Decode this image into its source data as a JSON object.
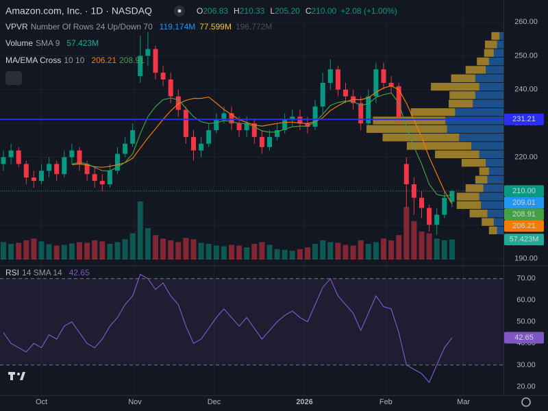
{
  "header": {
    "title": "Amazon.com, Inc. · 1D · NASDAQ",
    "quote": [
      {
        "label": "O",
        "value": "206.83"
      },
      {
        "label": "H",
        "value": "210.33"
      },
      {
        "label": "L",
        "value": "205.20"
      },
      {
        "label": "C",
        "value": "210.00"
      }
    ],
    "change": "+2.08 (+1.00%)"
  },
  "chart_data": {
    "type": "candlestick",
    "up_color": "#089981",
    "down_color": "#f23645",
    "open": [
      218,
      220,
      222,
      218,
      214,
      213,
      216,
      218,
      215,
      220,
      222,
      218,
      215,
      213,
      212,
      216,
      221,
      224,
      244,
      250,
      252,
      245,
      243,
      238,
      234,
      226,
      222,
      224,
      228,
      231,
      233,
      230,
      228,
      230,
      226,
      223,
      226,
      228,
      231,
      232,
      230,
      229,
      235,
      242,
      246,
      240,
      238,
      236,
      230,
      238,
      246,
      242,
      241,
      218,
      212,
      208,
      205,
      200,
      203,
      206.83
    ],
    "high": [
      222,
      224,
      223,
      219,
      216,
      218,
      220,
      219,
      222,
      224,
      223,
      219,
      217,
      215,
      218,
      223,
      226,
      230,
      256,
      257,
      253,
      247,
      245,
      240,
      235,
      228,
      226,
      230,
      233,
      235,
      235,
      232,
      232,
      231,
      228,
      228,
      230,
      233,
      234,
      234,
      232,
      237,
      245,
      249,
      247,
      242,
      240,
      238,
      240,
      248,
      248,
      244,
      242,
      220,
      214,
      210,
      206,
      205,
      210,
      210.33
    ],
    "low": [
      216,
      218,
      217,
      212,
      211,
      212,
      214,
      213,
      214,
      218,
      216,
      213,
      211,
      210,
      211,
      215,
      220,
      223,
      242,
      247,
      243,
      241,
      236,
      232,
      224,
      219,
      220,
      223,
      227,
      230,
      228,
      226,
      226,
      224,
      221,
      222,
      225,
      227,
      229,
      228,
      227,
      228,
      233,
      240,
      238,
      236,
      234,
      228,
      229,
      236,
      240,
      239,
      230,
      205,
      203,
      202,
      198,
      197,
      202,
      205.2
    ],
    "close": [
      220,
      222,
      218,
      214,
      213,
      216,
      218,
      215,
      220,
      222,
      218,
      215,
      213,
      212,
      216,
      221,
      224,
      228,
      250,
      252,
      245,
      243,
      238,
      234,
      226,
      222,
      224,
      228,
      231,
      233,
      230,
      228,
      230,
      226,
      223,
      226,
      228,
      231,
      232,
      230,
      229,
      235,
      242,
      246,
      240,
      238,
      236,
      230,
      238,
      246,
      242,
      241,
      232,
      212,
      208,
      205,
      200,
      203,
      208,
      210
    ],
    "close_label": "210.00",
    "ylim": [
      188.5,
      266.5
    ],
    "yticks": [
      {
        "value": 190,
        "label": "190.00"
      },
      {
        "value": 200,
        "label": "200.00"
      },
      {
        "value": 210,
        "label": "210.00"
      },
      {
        "value": 220,
        "label": "220.00"
      },
      {
        "value": 230,
        "label": "230.00"
      },
      {
        "value": 240,
        "label": "240.00"
      },
      {
        "value": 250,
        "label": "250.00"
      },
      {
        "value": 260,
        "label": "260.00"
      }
    ],
    "xticks": [
      {
        "value": 5,
        "label": "Oct"
      },
      {
        "value": 17.3,
        "label": "Nov"
      },
      {
        "value": 27.7,
        "label": "Dec"
      },
      {
        "value": 39.6,
        "label": "2026"
      },
      {
        "value": 50.3,
        "label": "Feb"
      },
      {
        "value": 60.5,
        "label": "Mar"
      }
    ],
    "grid": true,
    "price_line": {
      "value": 231.21,
      "label": "231.21",
      "color": "#2a2ef0"
    },
    "level": {
      "value": 209.01,
      "label": "209.01",
      "color": "#2196f3"
    },
    "vpvr": {
      "name": "VPVR",
      "params": "Number Of Rows 24 Up/Down 70",
      "up_total": "119.174M",
      "down_total": "77.599M",
      "total": "196.772M",
      "up_color": "#1f5b9e",
      "down_color": "#b08d2c",
      "up": [
        8,
        12,
        20,
        28,
        30,
        25,
        20,
        18,
        22,
        30,
        40,
        55,
        70,
        72,
        60,
        38,
        35,
        30,
        35,
        22,
        18,
        12,
        8,
        5
      ],
      "down": [
        10,
        15,
        22,
        30,
        28,
        22,
        15,
        12,
        30,
        55,
        80,
        95,
        100,
        90,
        55,
        30,
        32,
        60,
        30,
        25,
        15,
        12,
        15,
        10
      ]
    },
    "volume": {
      "name": "Volume",
      "params": "SMA 9",
      "value_label": "57.423M",
      "badge_color": "#22ab94",
      "values": [
        50,
        45,
        48,
        55,
        60,
        52,
        44,
        40,
        42,
        46,
        50,
        48,
        55,
        52,
        45,
        50,
        58,
        75,
        166,
        90,
        70,
        60,
        55,
        50,
        62,
        58,
        48,
        45,
        40,
        38,
        42,
        40,
        35,
        45,
        50,
        42,
        30,
        28,
        25,
        30,
        35,
        45,
        55,
        50,
        48,
        42,
        40,
        55,
        45,
        50,
        60,
        55,
        70,
        150,
        110,
        80,
        75,
        60,
        55,
        57.423
      ]
    },
    "cross": {
      "name": "MA/EMA Cross",
      "params": "10 10",
      "ma": {
        "color": "#f57c00",
        "last_label": "206.21",
        "values": [
          null,
          null,
          null,
          null,
          null,
          null,
          null,
          null,
          null,
          217.8,
          218,
          217.7,
          217.2,
          217,
          217.3,
          217.8,
          218.4,
          219.7,
          222.7,
          225.7,
          228.4,
          231.2,
          233.7,
          235.8,
          236.8,
          237.4,
          237.4,
          237.8,
          236,
          234.1,
          232.6,
          231.1,
          230.3,
          229.5,
          229.2,
          229.6,
          230,
          230.3,
          230.4,
          230.1,
          230,
          230.5,
          231.7,
          233.8,
          235.2,
          236.4,
          237.1,
          237,
          237.6,
          239.2,
          240.5,
          241.1,
          240,
          236,
          231,
          226,
          220,
          215,
          210,
          206.21
        ]
      },
      "ema": {
        "color": "#43a047",
        "last_label": "208.91",
        "values": [
          null,
          null,
          null,
          null,
          null,
          null,
          null,
          null,
          null,
          218,
          218.5,
          218,
          217,
          216,
          216,
          217,
          218.5,
          221,
          227,
          232,
          235,
          237,
          237.5,
          237,
          234.5,
          232,
          230.5,
          230,
          230.2,
          230.8,
          230.6,
          230,
          230,
          229,
          227.8,
          227.4,
          227.5,
          228.3,
          229,
          229.2,
          229.2,
          230.4,
          232.7,
          235.3,
          236.2,
          236.6,
          236.5,
          235.3,
          235.8,
          237.7,
          238.5,
          239,
          236,
          229,
          223,
          218,
          212,
          209,
          208.5,
          208.91
        ]
      }
    },
    "rsi": {
      "name": "RSI",
      "params": "14 SMA 14",
      "last_label": "42.65",
      "color": "#7e57c2",
      "values": [
        45,
        40,
        38,
        36,
        40,
        38,
        44,
        42,
        48,
        50,
        45,
        40,
        38,
        42,
        48,
        52,
        58,
        62,
        72,
        70,
        65,
        68,
        62,
        58,
        48,
        40,
        42,
        47,
        52,
        56,
        52,
        48,
        52,
        47,
        42,
        46,
        50,
        53,
        55,
        52,
        50,
        58,
        66,
        70,
        62,
        58,
        54,
        46,
        54,
        62,
        57,
        56,
        45,
        30,
        28,
        26,
        22,
        30,
        38,
        42.65
      ],
      "ylim": [
        16,
        75
      ],
      "yticks": [
        {
          "value": 20,
          "label": "20.00"
        },
        {
          "value": 30,
          "label": "30.00"
        },
        {
          "value": 40,
          "label": "40.00"
        },
        {
          "value": 50,
          "label": "50.00"
        },
        {
          "value": 60,
          "label": "60.00"
        },
        {
          "value": 70,
          "label": "70.00"
        }
      ],
      "levels": [
        70,
        30
      ]
    }
  }
}
